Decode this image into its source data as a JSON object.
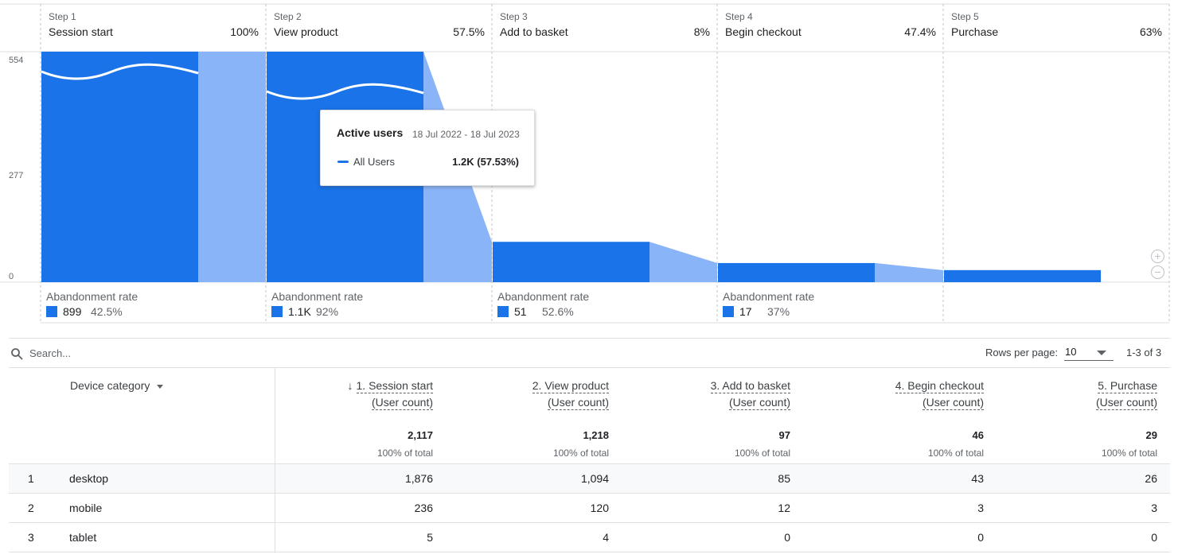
{
  "funnel": {
    "y_axis": {
      "ticks": [
        "554",
        "277",
        "0"
      ],
      "max": 554
    },
    "steps": [
      {
        "step_label": "Step 1",
        "name": "Session start",
        "pct": "100%",
        "bar_value": 554,
        "wave": true,
        "abandon_title": "Abandonment rate",
        "abandon_count": "899",
        "abandon_rate": "42.5%"
      },
      {
        "step_label": "Step 2",
        "name": "View product",
        "pct": "57.5%",
        "bar_value": 554,
        "wave": true,
        "abandon_title": "Abandonment rate",
        "abandon_count": "1.1K",
        "abandon_rate": "92%"
      },
      {
        "step_label": "Step 3",
        "name": "Add to basket",
        "pct": "8%",
        "bar_value": 97,
        "wave": false,
        "abandon_title": "Abandonment rate",
        "abandon_count": "51",
        "abandon_rate": "52.6%"
      },
      {
        "step_label": "Step 4",
        "name": "Begin checkout",
        "pct": "47.4%",
        "bar_value": 46,
        "wave": false,
        "abandon_title": "Abandonment rate",
        "abandon_count": "17",
        "abandon_rate": "37%"
      },
      {
        "step_label": "Step 5",
        "name": "Purchase",
        "pct": "63%",
        "bar_value": 29,
        "wave": false,
        "abandon_title": "",
        "abandon_count": "",
        "abandon_rate": ""
      }
    ],
    "colors": {
      "bar": "#1a73e8",
      "dropoff": "#8ab4f8"
    },
    "tooltip": {
      "title": "Active users",
      "date_range": "18 Jul 2022 - 18 Jul 2023",
      "series": "All Users",
      "value": "1.2K (57.53%)"
    },
    "zoom_in_icon": "plus-circle-icon",
    "zoom_out_icon": "minus-circle-icon"
  },
  "table_controls": {
    "search_placeholder": "Search...",
    "rows_per_page_label": "Rows per page:",
    "rows_per_page_value": "10",
    "pagination": "1-3 of 3"
  },
  "table": {
    "dimension_header": "Device category",
    "columns": [
      {
        "title": "1. Session start",
        "subtitle": "(User count)",
        "total": "2,117",
        "pct": "100% of total",
        "sorted": true
      },
      {
        "title": "2. View product",
        "subtitle": "(User count)",
        "total": "1,218",
        "pct": "100% of total",
        "sorted": false
      },
      {
        "title": "3. Add to basket",
        "subtitle": "(User count)",
        "total": "97",
        "pct": "100% of total",
        "sorted": false
      },
      {
        "title": "4. Begin checkout",
        "subtitle": "(User count)",
        "total": "46",
        "pct": "100% of total",
        "sorted": false
      },
      {
        "title": "5. Purchase",
        "subtitle": "(User count)",
        "total": "29",
        "pct": "100% of total",
        "sorted": false
      }
    ],
    "sort_arrow": "↓",
    "rows": [
      {
        "index": "1",
        "dimension": "desktop",
        "values": [
          "1,876",
          "1,094",
          "85",
          "43",
          "26"
        ]
      },
      {
        "index": "2",
        "dimension": "mobile",
        "values": [
          "236",
          "120",
          "12",
          "3",
          "3"
        ]
      },
      {
        "index": "3",
        "dimension": "tablet",
        "values": [
          "5",
          "4",
          "0",
          "0",
          "0"
        ]
      }
    ]
  }
}
